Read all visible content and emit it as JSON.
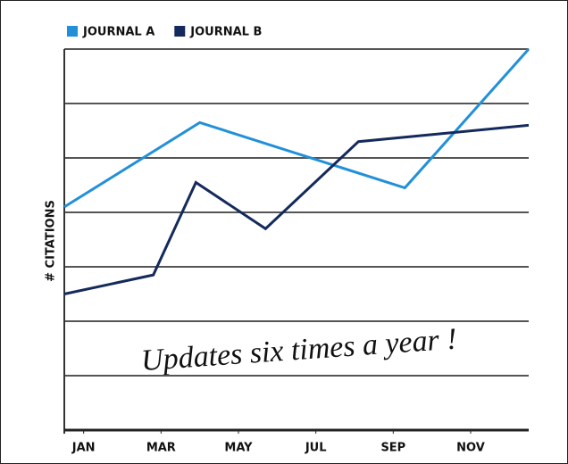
{
  "chart_data": {
    "type": "line",
    "y_label": "# CITATIONS",
    "annotation": "Updates six times a year !",
    "xlim": [
      0.5,
      12.5
    ],
    "xticks": [
      {
        "value": 1,
        "label": "JAN"
      },
      {
        "value": 3,
        "label": "MAR"
      },
      {
        "value": 5,
        "label": "MAY"
      },
      {
        "value": 7,
        "label": "JUL"
      },
      {
        "value": 9,
        "label": "SEP"
      },
      {
        "value": 11,
        "label": "NOV"
      }
    ],
    "ylim": [
      0,
      7
    ],
    "yticks": [
      0,
      1,
      2,
      3,
      4,
      5,
      6,
      7
    ],
    "ytick_labels": false,
    "grid": true,
    "legend": "top-left",
    "series": [
      {
        "name": "JOURNAL A",
        "color": "#2290d8",
        "x": [
          0.5,
          4,
          9.3,
          12.5
        ],
        "values": [
          4.1,
          5.65,
          4.45,
          7
        ]
      },
      {
        "name": "JOURNAL B",
        "color": "#142a5c",
        "x": [
          0.5,
          2.8,
          3.9,
          5.7,
          8.1,
          12.5
        ],
        "values": [
          2.5,
          2.85,
          4.55,
          3.7,
          5.3,
          5.6
        ]
      }
    ]
  }
}
